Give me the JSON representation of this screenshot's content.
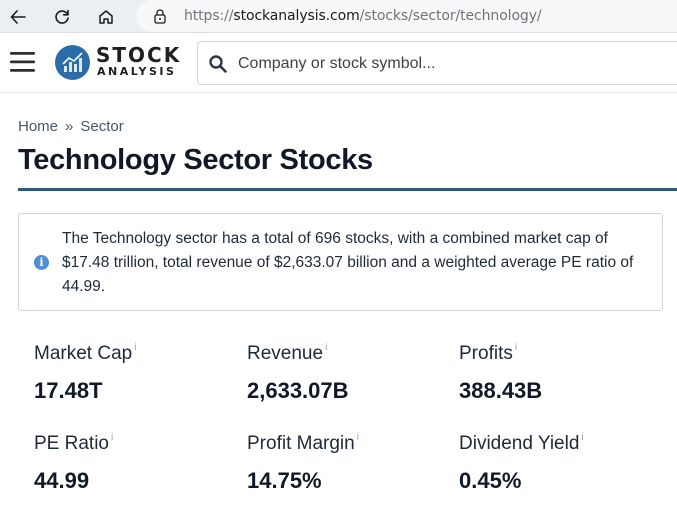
{
  "browser": {
    "url_prefix": "https://",
    "url_domain": "stockanalysis.com",
    "url_path": "/stocks/sector/technology/"
  },
  "header": {
    "logo_line1": "STOCK",
    "logo_line2": "ANALYSIS",
    "search_placeholder": "Company or stock symbol..."
  },
  "breadcrumb": {
    "items": [
      "Home",
      "Sector"
    ],
    "separator": "»"
  },
  "page": {
    "title": "Technology Sector Stocks",
    "info_text": "The Technology sector has a total of 696 stocks, with a combined market cap of $17.48 trillion, total revenue of $2,633.07 billion and a weighted average PE ratio of 44.99."
  },
  "stats": [
    {
      "label": "Market Cap",
      "value": "17.48T"
    },
    {
      "label": "Revenue",
      "value": "2,633.07B"
    },
    {
      "label": "Profits",
      "value": "388.43B"
    },
    {
      "label": "PE Ratio",
      "value": "44.99"
    },
    {
      "label": "Profit Margin",
      "value": "14.75%"
    },
    {
      "label": "Dividend Yield",
      "value": "0.45%"
    }
  ],
  "info_marker": "i",
  "colors": {
    "accent": "#2f5b78",
    "logo_blue": "#2c6da8",
    "info_icon": "#4e8ed4"
  }
}
